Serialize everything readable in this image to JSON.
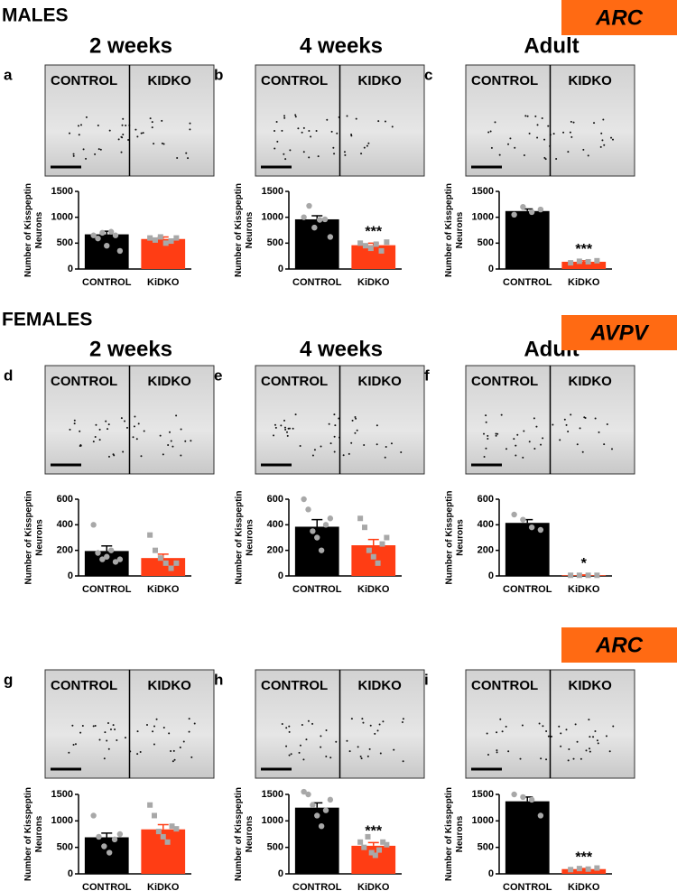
{
  "sections": [
    {
      "title": "MALES",
      "columns": [
        "2 weeks",
        "4 weeks",
        "Adult"
      ]
    },
    {
      "title": "FEMALES",
      "columns": [
        "2 weeks",
        "4 weeks",
        "Adult"
      ]
    }
  ],
  "regions": [
    "ARC",
    "AVPV",
    "ARC"
  ],
  "panels": [
    {
      "letter": "a",
      "labels": [
        "CONTROL",
        "KIDKO"
      ]
    },
    {
      "letter": "b",
      "labels": [
        "CONTROL",
        "KIDKO"
      ]
    },
    {
      "letter": "c",
      "labels": [
        "CONTROL",
        "KIDKO"
      ]
    },
    {
      "letter": "d",
      "labels": [
        "CONTROL",
        "KIDKO"
      ]
    },
    {
      "letter": "e",
      "labels": [
        "CONTROL",
        "KIDKO"
      ]
    },
    {
      "letter": "f",
      "labels": [
        "CONTROL",
        "KIDKO"
      ]
    },
    {
      "letter": "g",
      "labels": [
        "CONTROL",
        "KIDKO"
      ]
    },
    {
      "letter": "h",
      "labels": [
        "CONTROL",
        "KIDKO"
      ]
    },
    {
      "letter": "i",
      "labels": [
        "CONTROL",
        "KIDKO"
      ]
    }
  ],
  "chart_data": [
    {
      "type": "bar",
      "y_label": "Number of Kisspeptin Neurons",
      "categories": [
        "CONTROL",
        "KiDKO"
      ],
      "values": [
        670,
        580
      ],
      "errors": [
        60,
        40
      ],
      "points": [
        [
          650,
          590,
          700,
          450,
          720,
          650,
          350
        ],
        [
          600,
          560,
          620,
          500,
          540,
          600
        ]
      ],
      "colors": [
        "#000000",
        "#ff3d14"
      ],
      "ylim": [
        0,
        1500
      ],
      "yticks": [
        0,
        500,
        1000,
        1500
      ]
    },
    {
      "type": "bar",
      "y_label": "Number of Kisspeptin Neurons",
      "categories": [
        "CONTROL",
        "KiDKO"
      ],
      "values": [
        960,
        460
      ],
      "errors": [
        70,
        40
      ],
      "points": [
        [
          1000,
          1220,
          800,
          950,
          960,
          620
        ],
        [
          500,
          450,
          400,
          480,
          350,
          520
        ]
      ],
      "colors": [
        "#000000",
        "#ff3d14"
      ],
      "ylim": [
        0,
        1500
      ],
      "yticks": [
        0,
        500,
        1000,
        1500
      ],
      "annotation": "***"
    },
    {
      "type": "bar",
      "y_label": "Number of Kisspeptin Neurons",
      "categories": [
        "CONTROL",
        "KiDKO"
      ],
      "values": [
        1120,
        140
      ],
      "errors": [
        40,
        20
      ],
      "points": [
        [
          1050,
          1200,
          1100,
          1150
        ],
        [
          120,
          150,
          140,
          160
        ]
      ],
      "colors": [
        "#000000",
        "#ff3d14"
      ],
      "ylim": [
        0,
        1500
      ],
      "yticks": [
        0,
        500,
        1000,
        1500
      ],
      "annotation": "***"
    },
    {
      "type": "bar",
      "y_label": "Number of Kisspeptin Neurons",
      "categories": [
        "CONTROL",
        "KiDKO"
      ],
      "values": [
        195,
        140
      ],
      "errors": [
        40,
        30
      ],
      "points": [
        [
          400,
          180,
          130,
          150,
          200,
          110,
          130
        ],
        [
          320,
          200,
          140,
          100,
          60,
          100
        ]
      ],
      "colors": [
        "#000000",
        "#ff3d14"
      ],
      "ylim": [
        0,
        600
      ],
      "yticks": [
        0,
        200,
        400,
        600
      ]
    },
    {
      "type": "bar",
      "y_label": "Number of Kisspeptin Neurons",
      "categories": [
        "CONTROL",
        "KiDKO"
      ],
      "values": [
        385,
        240
      ],
      "errors": [
        55,
        45
      ],
      "points": [
        [
          600,
          520,
          350,
          300,
          200,
          400,
          450
        ],
        [
          450,
          380,
          200,
          150,
          100,
          250,
          300
        ]
      ],
      "colors": [
        "#000000",
        "#ff3d14"
      ],
      "ylim": [
        0,
        600
      ],
      "yticks": [
        0,
        200,
        400,
        600
      ]
    },
    {
      "type": "bar",
      "y_label": "Number of Kisspeptin Neurons",
      "categories": [
        "CONTROL",
        "KiDKO"
      ],
      "values": [
        415,
        5
      ],
      "errors": [
        25,
        3
      ],
      "points": [
        [
          480,
          440,
          380,
          360
        ],
        [
          5,
          5,
          5,
          5
        ]
      ],
      "colors": [
        "#000000",
        "#ff3d14"
      ],
      "ylim": [
        0,
        600
      ],
      "yticks": [
        0,
        200,
        400,
        600
      ],
      "annotation": "*"
    },
    {
      "type": "bar",
      "y_label": "Number of Kisspeptin Neurons",
      "categories": [
        "CONTROL",
        "KiDKO"
      ],
      "values": [
        690,
        840
      ],
      "errors": [
        80,
        90
      ],
      "points": [
        [
          1100,
          700,
          520,
          400,
          650,
          750
        ],
        [
          1300,
          1100,
          800,
          700,
          600,
          900,
          850
        ]
      ],
      "colors": [
        "#000000",
        "#ff3d14"
      ],
      "ylim": [
        0,
        1500
      ],
      "yticks": [
        0,
        500,
        1000,
        1500
      ]
    },
    {
      "type": "bar",
      "y_label": "Number of Kisspeptin Neurons",
      "categories": [
        "CONTROL",
        "KiDKO"
      ],
      "values": [
        1250,
        530
      ],
      "errors": [
        90,
        60
      ],
      "points": [
        [
          1550,
          1500,
          1300,
          1100,
          900,
          1200,
          1400
        ],
        [
          600,
          500,
          700,
          400,
          350,
          450,
          600,
          550
        ]
      ],
      "colors": [
        "#000000",
        "#ff3d14"
      ],
      "ylim": [
        0,
        1500
      ],
      "yticks": [
        0,
        500,
        1000,
        1500
      ],
      "annotation": "***"
    },
    {
      "type": "bar",
      "y_label": "Number of Kisspeptin Neurons",
      "categories": [
        "CONTROL",
        "KiDKO"
      ],
      "values": [
        1370,
        90
      ],
      "errors": [
        80,
        10
      ],
      "points": [
        [
          1500,
          1450,
          1400,
          1100
        ],
        [
          80,
          100,
          90,
          110
        ]
      ],
      "colors": [
        "#000000",
        "#ff3d14"
      ],
      "ylim": [
        0,
        1500
      ],
      "yticks": [
        0,
        500,
        1000,
        1500
      ],
      "annotation": "***"
    }
  ]
}
